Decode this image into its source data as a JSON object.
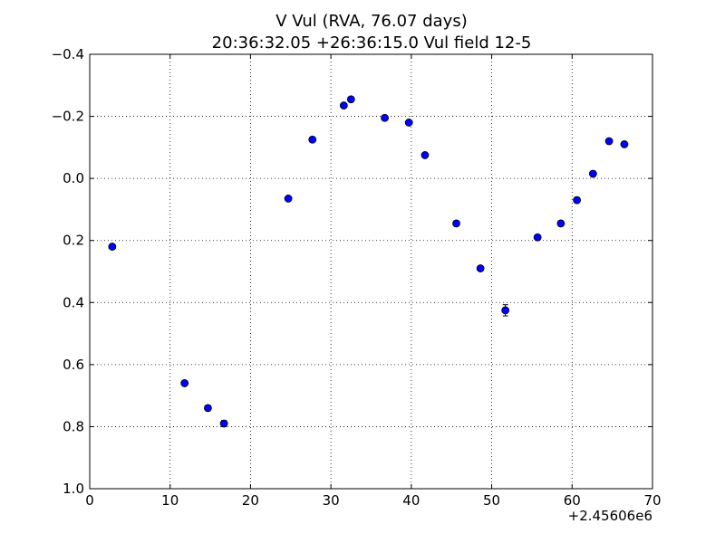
{
  "chart_data": {
    "type": "scatter",
    "title": "V Vul (RVA, 76.07 days)",
    "subtitle": "20:36:32.05 +26:36:15.0 Vul field 12-5",
    "xlabel": "",
    "ylabel": "",
    "x_offset_label": "+2.45606e6",
    "xlim": [
      0,
      70
    ],
    "ylim": [
      1.0,
      -0.4
    ],
    "y_inverted": true,
    "grid": true,
    "grid_style": "dotted",
    "x_ticks": [
      0,
      10,
      20,
      30,
      40,
      50,
      60,
      70
    ],
    "x_tick_labels": [
      "0",
      "10",
      "20",
      "30",
      "40",
      "50",
      "60",
      "70"
    ],
    "y_ticks": [
      -0.4,
      -0.2,
      0.0,
      0.2,
      0.4,
      0.6,
      0.8,
      1.0
    ],
    "y_tick_labels": [
      "−0.4",
      "−0.2",
      "0.0",
      "0.2",
      "0.4",
      "0.6",
      "0.8",
      "1.0"
    ],
    "marker_color": "#0000ff",
    "marker_edge_color": "#000000",
    "series": [
      {
        "points": [
          {
            "x": 2.8,
            "y": 0.22,
            "err": 0.008
          },
          {
            "x": 11.8,
            "y": 0.66,
            "err": 0.008
          },
          {
            "x": 14.7,
            "y": 0.74,
            "err": 0.008
          },
          {
            "x": 16.7,
            "y": 0.79,
            "err": 0.01
          },
          {
            "x": 24.7,
            "y": 0.065,
            "err": 0.006
          },
          {
            "x": 27.7,
            "y": -0.125,
            "err": 0.006
          },
          {
            "x": 31.6,
            "y": -0.235,
            "err": 0.006
          },
          {
            "x": 32.5,
            "y": -0.255,
            "err": 0.006
          },
          {
            "x": 36.7,
            "y": -0.195,
            "err": 0.006
          },
          {
            "x": 39.7,
            "y": -0.18,
            "err": 0.006
          },
          {
            "x": 41.7,
            "y": -0.075,
            "err": 0.006
          },
          {
            "x": 45.6,
            "y": 0.145,
            "err": 0.008
          },
          {
            "x": 48.6,
            "y": 0.29,
            "err": 0.008
          },
          {
            "x": 51.7,
            "y": 0.425,
            "err": 0.018
          },
          {
            "x": 55.7,
            "y": 0.19,
            "err": 0.008
          },
          {
            "x": 58.6,
            "y": 0.145,
            "err": 0.008
          },
          {
            "x": 60.6,
            "y": 0.07,
            "err": 0.008
          },
          {
            "x": 62.6,
            "y": -0.015,
            "err": 0.006
          },
          {
            "x": 64.6,
            "y": -0.12,
            "err": 0.006
          },
          {
            "x": 66.5,
            "y": -0.11,
            "err": 0.006
          }
        ]
      }
    ]
  }
}
